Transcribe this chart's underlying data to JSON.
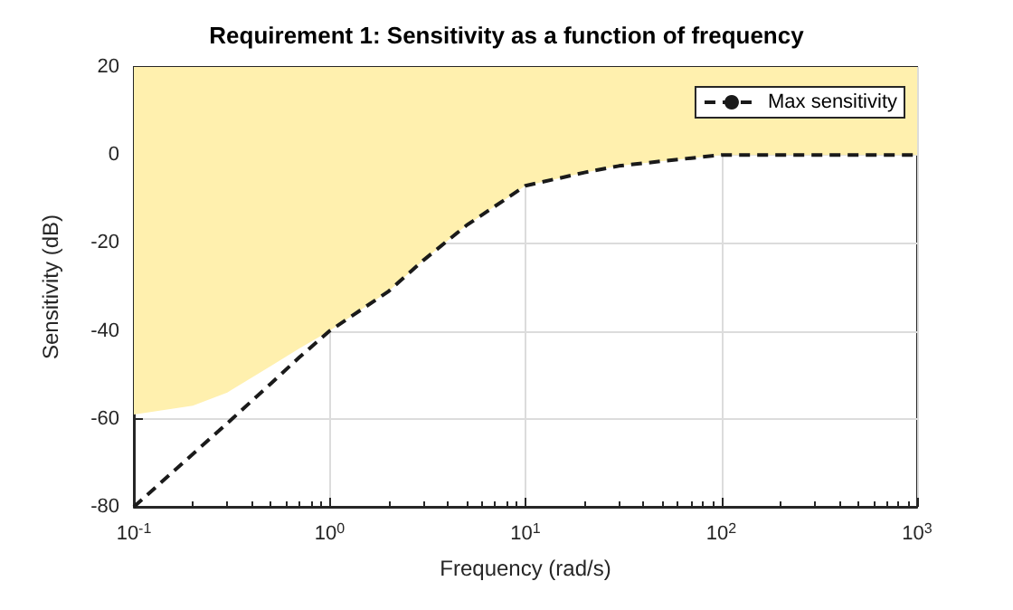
{
  "chart_data": {
    "type": "line",
    "title": "Requirement 1: Sensitivity as a function of frequency",
    "xlabel": "Frequency (rad/s)",
    "ylabel": "Sensitivity (dB)",
    "log": "x",
    "xlim": [
      0.1,
      1000
    ],
    "ylim": [
      -80,
      20
    ],
    "xticks": [
      {
        "value": 0.1,
        "label": "10$^{-1}$"
      },
      {
        "value": 1,
        "label": "10$^{0}$"
      },
      {
        "value": 10,
        "label": "10$^{1}$"
      },
      {
        "value": 100,
        "label": "10$^{2}$"
      },
      {
        "value": 1000,
        "label": "10$^{3}$"
      }
    ],
    "yticks": [
      -80,
      -60,
      -40,
      -20,
      0,
      20
    ],
    "grid": true,
    "legend": "top right",
    "marker": "none",
    "line_style": "dashed",
    "series": [
      {
        "name": "Max sensitivity",
        "color": "#1a1a1a",
        "x": [
          0.1,
          0.2,
          0.3,
          0.5,
          0.7,
          1,
          2,
          3,
          5,
          10,
          20,
          30,
          50,
          100,
          1000
        ],
        "values": [
          -80,
          -68,
          -61,
          -52,
          -46,
          -40,
          -31,
          -24,
          -16,
          -7,
          -4,
          -2.5,
          -1.4,
          0,
          0
        ],
        "lower": [
          -59,
          -57,
          -54,
          -48,
          -44,
          -40,
          -31,
          -24,
          -16,
          -7,
          -4,
          -2.5,
          -1.4,
          0,
          0
        ],
        "upper": [
          20,
          20,
          20,
          20,
          20,
          20,
          20,
          20,
          20,
          20,
          20,
          20,
          20,
          20,
          20
        ]
      }
    ]
  }
}
